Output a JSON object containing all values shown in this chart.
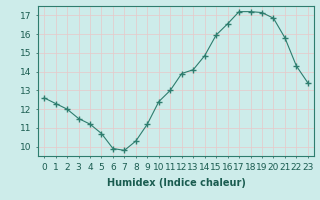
{
  "x": [
    0,
    1,
    2,
    3,
    4,
    5,
    6,
    7,
    8,
    9,
    10,
    11,
    12,
    13,
    14,
    15,
    16,
    17,
    18,
    19,
    20,
    21,
    22,
    23
  ],
  "y": [
    12.6,
    12.3,
    12.0,
    11.5,
    11.2,
    10.7,
    9.9,
    9.8,
    10.3,
    11.2,
    12.4,
    13.0,
    13.9,
    14.1,
    14.85,
    15.95,
    16.55,
    17.2,
    17.2,
    17.15,
    16.85,
    15.8,
    14.3,
    13.4
  ],
  "xlabel": "Humidex (Indice chaleur)",
  "xlim": [
    -0.5,
    23.5
  ],
  "ylim": [
    9.5,
    17.5
  ],
  "yticks": [
    10,
    11,
    12,
    13,
    14,
    15,
    16,
    17
  ],
  "xticks": [
    0,
    1,
    2,
    3,
    4,
    5,
    6,
    7,
    8,
    9,
    10,
    11,
    12,
    13,
    14,
    15,
    16,
    17,
    18,
    19,
    20,
    21,
    22,
    23
  ],
  "line_color": "#2e7d6e",
  "marker": "+",
  "marker_size": 4.0,
  "bg_color": "#cdecea",
  "grid_color": "#e8c8c8",
  "axis_label_fontsize": 7,
  "tick_fontsize": 6.5
}
